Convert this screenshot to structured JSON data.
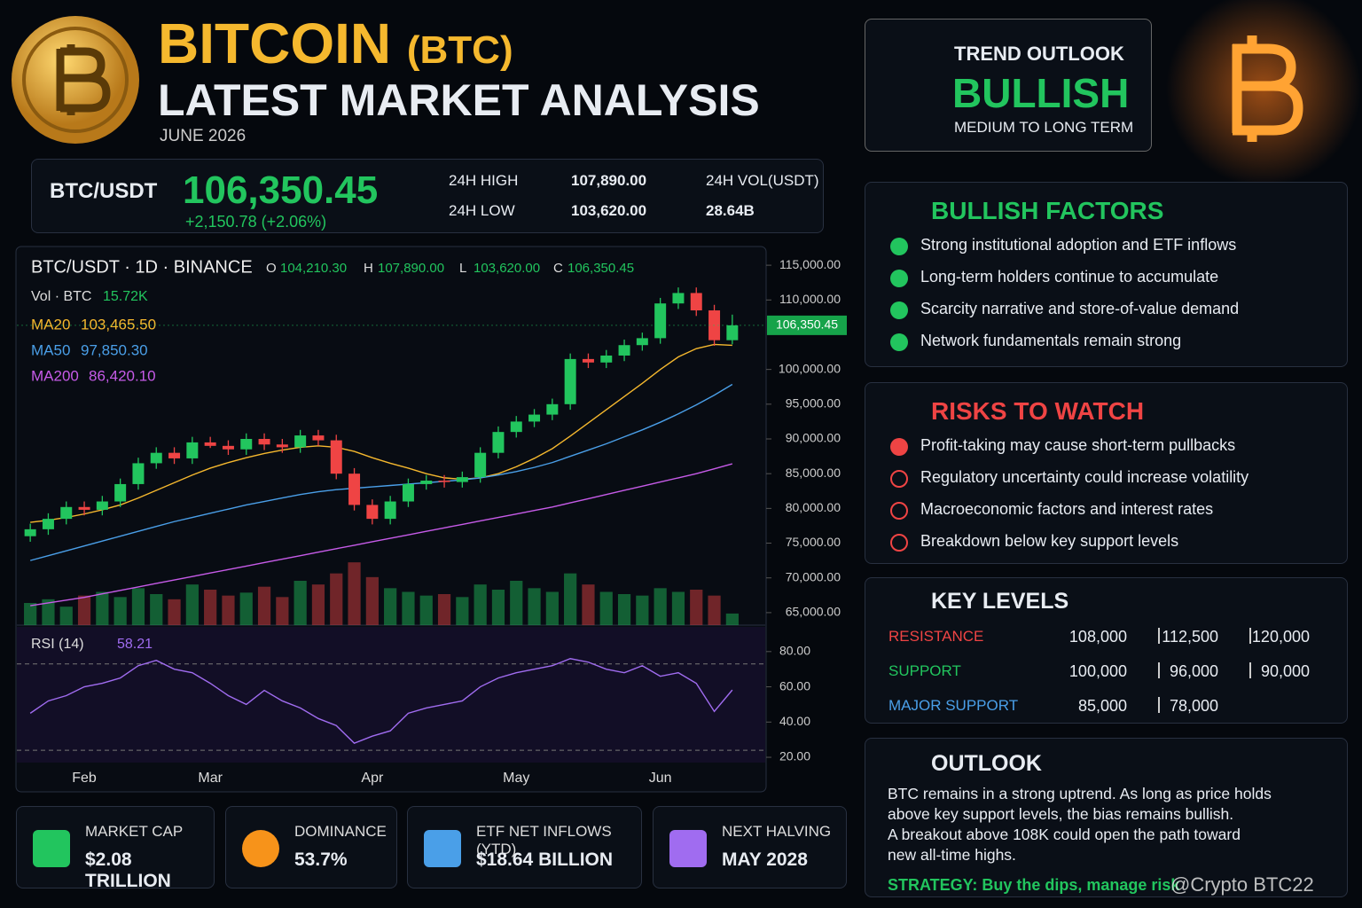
{
  "header": {
    "title": "BITCOIN",
    "ticker": "(BTC)",
    "subtitle": "LATEST MARKET ANALYSIS",
    "date": "JUNE 2026"
  },
  "quote": {
    "pair": "BTC/USDT",
    "price": "106,350.45",
    "change": "+2,150.78 (+2.06%)",
    "high_label": "24H HIGH",
    "high": "107,890.00",
    "low_label": "24H LOW",
    "low": "103,620.00",
    "vol_label": "24H VOL(USDT)",
    "vol": "28.64B"
  },
  "chart_data": {
    "type": "candlestick",
    "title": "BTC/USDT · 1D · BINANCE",
    "ohlc_labels": [
      {
        "label": "O",
        "value": "104,210.30"
      },
      {
        "label": "H",
        "value": "107,890.00"
      },
      {
        "label": "L",
        "value": "103,620.00"
      },
      {
        "label": "C",
        "value": "106,350.45"
      }
    ],
    "categories": [
      null,
      null,
      null,
      "Feb",
      null,
      null,
      null,
      null,
      null,
      null,
      "Mar",
      null,
      null,
      null,
      null,
      null,
      null,
      null,
      null,
      "Apr",
      null,
      null,
      null,
      null,
      null,
      null,
      null,
      "May",
      null,
      null,
      null,
      null,
      null,
      null,
      null,
      "Jun",
      null,
      null,
      null,
      null
    ],
    "open": [
      76000,
      77000,
      78500,
      80200,
      79800,
      81000,
      83500,
      86500,
      88000,
      87200,
      89500,
      89000,
      88500,
      90000,
      89200,
      88800,
      90500,
      89800,
      85000,
      80500,
      78500,
      81000,
      83500,
      84000,
      83800,
      84500,
      88000,
      91000,
      92500,
      93500,
      95000,
      101500,
      101000,
      102000,
      103500,
      104500,
      109500,
      111000,
      108500,
      104210.3
    ],
    "high": [
      77800,
      79300,
      81000,
      81000,
      81800,
      84300,
      87300,
      88800,
      88800,
      90300,
      90300,
      89800,
      90800,
      90800,
      90000,
      91300,
      91300,
      90600,
      85800,
      81300,
      81800,
      84300,
      84800,
      84800,
      85300,
      88800,
      91800,
      93300,
      94300,
      95800,
      102300,
      102300,
      102800,
      104300,
      105300,
      110300,
      111800,
      111800,
      109300,
      107890
    ],
    "low": [
      75200,
      76200,
      77700,
      79000,
      79000,
      80200,
      82700,
      85700,
      86400,
      86400,
      88700,
      87700,
      87700,
      88400,
      88000,
      88000,
      89000,
      84200,
      79700,
      77700,
      77700,
      80200,
      82700,
      83000,
      83000,
      83700,
      87200,
      90200,
      91700,
      92700,
      94200,
      100200,
      100200,
      101200,
      102700,
      103700,
      108700,
      107700,
      103400,
      103620
    ],
    "close": [
      77000,
      78500,
      80200,
      79800,
      81000,
      83500,
      86500,
      88000,
      87200,
      89500,
      89000,
      88500,
      90000,
      89200,
      88800,
      90500,
      89800,
      85000,
      80500,
      78500,
      81000,
      83500,
      84000,
      83800,
      84500,
      88000,
      91000,
      92500,
      93500,
      95000,
      101500,
      101000,
      102000,
      103500,
      104500,
      109500,
      111000,
      108500,
      104210.3,
      106350.45
    ],
    "up_color": "#22c55e",
    "down_color": "#ef4444",
    "ylim": [
      63200,
      116800
    ],
    "yticks": [
      {
        "value": 65000,
        "label": "65,000.00"
      },
      {
        "value": 70000,
        "label": "70,000.00"
      },
      {
        "value": 75000,
        "label": "75,000.00"
      },
      {
        "value": 80000,
        "label": "80,000.00"
      },
      {
        "value": 85000,
        "label": "85,000.00"
      },
      {
        "value": 90000,
        "label": "90,000.00"
      },
      {
        "value": 95000,
        "label": "95,000.00"
      },
      {
        "value": 100000,
        "label": "100,000.00"
      },
      {
        "value": 110000,
        "label": "110,000.00"
      },
      {
        "value": 115000,
        "label": "115,000.00"
      }
    ],
    "last_price": {
      "value": 106350.45,
      "label": "106,350.45"
    },
    "volume": {
      "name": "Vol · BTC",
      "last_label": "15.72K",
      "ylim": [
        0,
        120
      ],
      "values": [
        30,
        35,
        25,
        40,
        45,
        38,
        50,
        42,
        35,
        55,
        48,
        40,
        44,
        52,
        38,
        60,
        55,
        70,
        85,
        65,
        50,
        45,
        40,
        42,
        38,
        55,
        48,
        60,
        50,
        45,
        70,
        55,
        45,
        42,
        40,
        50,
        45,
        48,
        40,
        15.72
      ]
    },
    "moving_averages": [
      {
        "name": "MA20",
        "value_label": "103,465.50",
        "color": "#f5b82e",
        "values": [
          78000,
          78300,
          78700,
          79200,
          79800,
          80500,
          81500,
          82600,
          83700,
          84800,
          85800,
          86600,
          87300,
          87900,
          88400,
          88800,
          89000,
          88800,
          88200,
          87300,
          86500,
          85800,
          85000,
          84400,
          84200,
          84400,
          85000,
          86000,
          87200,
          88600,
          90400,
          92300,
          94200,
          96100,
          98000,
          100000,
          101800,
          103000,
          103600,
          103465.5
        ]
      },
      {
        "name": "MA50",
        "value_label": "97,850.30",
        "color": "#4a9fe8",
        "values": [
          72500,
          73200,
          73900,
          74600,
          75300,
          76000,
          76700,
          77400,
          78100,
          78700,
          79300,
          79900,
          80500,
          81000,
          81500,
          82000,
          82400,
          82700,
          82900,
          83100,
          83300,
          83500,
          83700,
          83900,
          84100,
          84400,
          84800,
          85300,
          85900,
          86600,
          87500,
          88400,
          89300,
          90300,
          91300,
          92400,
          93600,
          94900,
          96300,
          97850.3
        ]
      },
      {
        "name": "MA200",
        "value_label": "86,420.10",
        "color": "#c65be8",
        "values": [
          66000,
          66400,
          66800,
          67200,
          67700,
          68200,
          68700,
          69200,
          69700,
          70200,
          70700,
          71200,
          71700,
          72200,
          72700,
          73200,
          73700,
          74200,
          74700,
          75200,
          75700,
          76200,
          76700,
          77200,
          77700,
          78200,
          78700,
          79200,
          79700,
          80200,
          80800,
          81400,
          82000,
          82600,
          83200,
          83800,
          84400,
          85000,
          85700,
          86420.1
        ]
      }
    ],
    "rsi": {
      "name": "RSI (14)",
      "value_label": "58.21",
      "color": "#a06cf0",
      "ylim": [
        17,
        94
      ],
      "levels": [
        73,
        24
      ],
      "yticks": [
        {
          "value": 20,
          "label": "20.00"
        },
        {
          "value": 40,
          "label": "40.00"
        },
        {
          "value": 60,
          "label": "60.00"
        },
        {
          "value": 80,
          "label": "80.00"
        }
      ],
      "values": [
        45,
        52,
        55,
        60,
        62,
        65,
        72,
        75,
        70,
        68,
        62,
        55,
        50,
        58,
        52,
        48,
        42,
        38,
        28,
        32,
        35,
        45,
        48,
        50,
        52,
        60,
        65,
        68,
        70,
        72,
        76,
        74,
        70,
        68,
        72,
        66,
        68,
        62,
        46,
        58.21
      ]
    }
  },
  "trend": {
    "label": "TREND OUTLOOK",
    "value": "BULLISH",
    "horizon": "MEDIUM TO LONG TERM"
  },
  "bullish_factors": {
    "title": "BULLISH FACTORS",
    "items": [
      "Strong institutional adoption and ETF inflows",
      "Long-term holders continue to accumulate",
      "Scarcity narrative and store-of-value demand",
      "Network fundamentals remain strong"
    ]
  },
  "risks": {
    "title": "RISKS TO WATCH",
    "items": [
      "Profit-taking may cause short-term pullbacks",
      "Regulatory uncertainty could increase volatility",
      "Macroeconomic factors and interest rates",
      "Breakdown below key support levels"
    ]
  },
  "key_levels": {
    "title": "KEY LEVELS",
    "rows": [
      {
        "label": "RESISTANCE",
        "color": "#ef4444",
        "values": [
          "108,000",
          "112,500",
          "120,000"
        ]
      },
      {
        "label": "SUPPORT",
        "color": "#22c55e",
        "values": [
          "100,000",
          "96,000",
          "90,000"
        ]
      },
      {
        "label": "MAJOR SUPPORT",
        "color": "#4a9fe8",
        "values": [
          "85,000",
          "78,000"
        ]
      }
    ]
  },
  "outlook": {
    "title": "OUTLOOK",
    "lines": [
      "BTC remains in a strong uptrend. As long as price holds",
      "above key support levels, the bias remains bullish.",
      "A breakout above 108K could open the path toward",
      "new all-time highs."
    ],
    "strategy": "STRATEGY: Buy the dips, manage risk"
  },
  "stats": [
    {
      "label": "MARKET CAP",
      "value": "$2.08 TRILLION"
    },
    {
      "label": "DOMINANCE",
      "value": "53.7%"
    },
    {
      "label": "ETF NET INFLOWS (YTD)",
      "value": "$18.64 BILLION"
    },
    {
      "label": "NEXT HALVING",
      "value": "MAY 2028"
    }
  ],
  "watermark": "@Crypto BTC22"
}
